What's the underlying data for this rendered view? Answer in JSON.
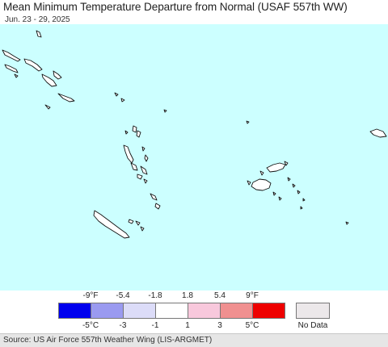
{
  "title": "Mean Minimum Temperature Departure from Normal (USAF 557th WW)",
  "subtitle": "Jun. 23 - 29, 2025",
  "colors": {
    "ocean": "#ccffff",
    "land": "#ffffff",
    "coastline": "#111111"
  },
  "legend": {
    "fahrenheit_ticks": [
      "-9°F",
      "-5.4",
      "-1.8",
      "1.8",
      "5.4",
      "9°F"
    ],
    "celsius_ticks": [
      "-5°C",
      "-3",
      "-1",
      "1",
      "3",
      "5°C"
    ],
    "color_bins": [
      "#0000ee",
      "#9a9af0",
      "#dcdcf8",
      "#ffffff",
      "#f8c8dc",
      "#f09090",
      "#ee0000"
    ],
    "no_data": {
      "label": "No Data",
      "color": "#ece8ea"
    }
  },
  "source": "Source: US Air Force 557th Weather Wing (LIS-ARGMET)"
}
